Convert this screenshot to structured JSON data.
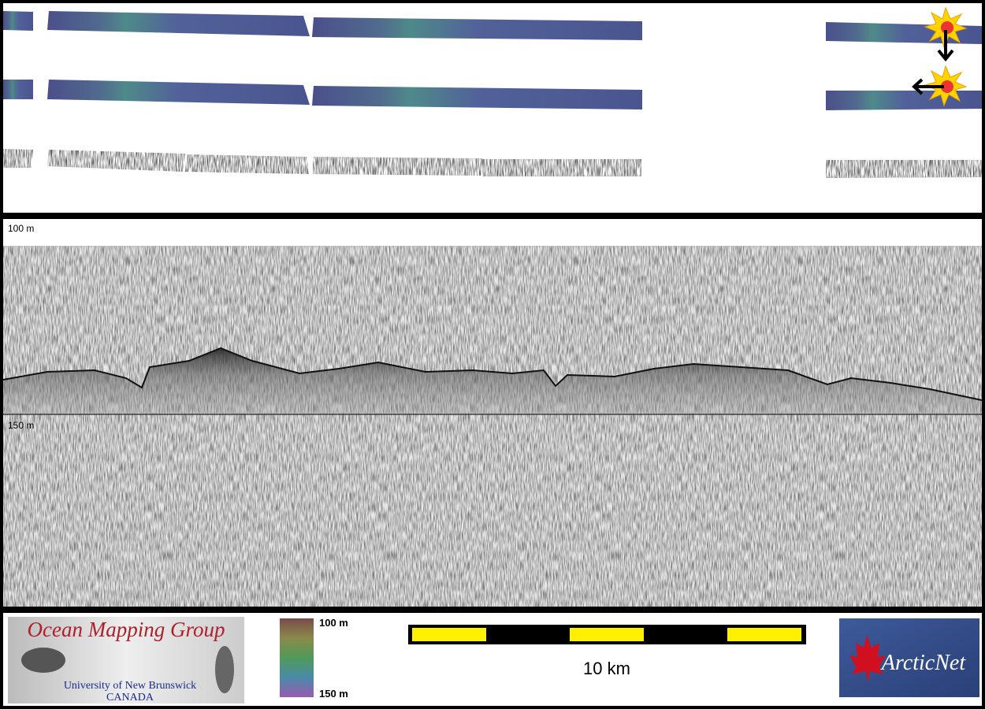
{
  "profile": {
    "top_label": "100 m",
    "bottom_label": "150 m"
  },
  "logos": {
    "omg": {
      "title": "Ocean Mapping Group",
      "university": "University of New Brunswick",
      "country": "CANADA"
    },
    "arcticnet": "ArcticNet"
  },
  "colorbar": {
    "top": "100 m",
    "bottom": "150 m"
  },
  "scale_bar": {
    "label": "10 km"
  }
}
